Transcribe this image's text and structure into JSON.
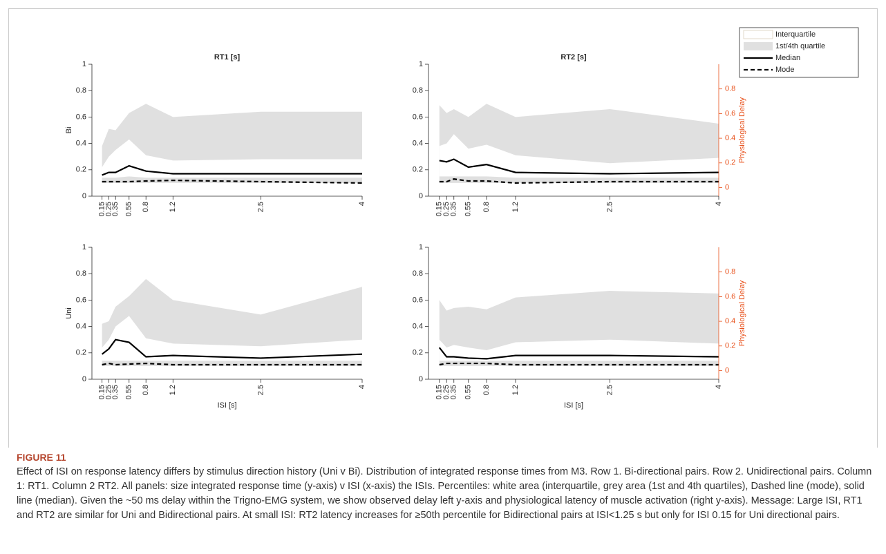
{
  "chart_data": [
    {
      "type": "line",
      "title": "RT1 [s]",
      "ylabel": "Bi",
      "x": [
        0.15,
        0.25,
        0.35,
        0.55,
        0.8,
        1.2,
        2.5,
        4
      ],
      "xlim": [
        0,
        4
      ],
      "xticks": [
        0.15,
        0.25,
        0.35,
        0.55,
        0.8,
        1.2,
        2.5,
        4
      ],
      "ylim": [
        0,
        1
      ],
      "yticks": [
        0,
        0.2,
        0.4,
        0.6,
        0.8,
        1
      ],
      "series": [
        {
          "name": "1st/4th quartile",
          "color": "#e0e0e0",
          "low": [
            0.1,
            0.1,
            0.1,
            0.1,
            0.1,
            0.1,
            0.1,
            0.1
          ],
          "high": [
            0.38,
            0.51,
            0.5,
            0.63,
            0.7,
            0.6,
            0.64,
            0.64
          ]
        },
        {
          "name": "Interquartile",
          "color": "#ffffff",
          "low": [
            0.14,
            0.14,
            0.14,
            0.15,
            0.14,
            0.14,
            0.14,
            0.14
          ],
          "high": [
            0.22,
            0.3,
            0.35,
            0.43,
            0.31,
            0.27,
            0.28,
            0.28
          ]
        },
        {
          "name": "Median",
          "color": "#000000",
          "values": [
            0.16,
            0.18,
            0.18,
            0.23,
            0.19,
            0.17,
            0.17,
            0.17
          ]
        },
        {
          "name": "Mode",
          "color": "#000000",
          "dashed": true,
          "values": [
            0.11,
            0.11,
            0.11,
            0.11,
            0.115,
            0.12,
            0.11,
            0.1
          ]
        }
      ]
    },
    {
      "type": "line",
      "title": "RT2 [s]",
      "y2label": "Physiological Delay",
      "y2color": "#e8501a",
      "x": [
        0.15,
        0.25,
        0.35,
        0.55,
        0.8,
        1.2,
        2.5,
        4
      ],
      "xlim": [
        0,
        4
      ],
      "xticks": [
        0.15,
        0.25,
        0.35,
        0.55,
        0.8,
        1.2,
        2.5,
        4
      ],
      "ylim": [
        0,
        1
      ],
      "yticks": [
        0,
        0.2,
        0.4,
        0.6,
        0.8,
        1
      ],
      "y2lim": [
        -0.07,
        1
      ],
      "y2ticks": [
        0,
        0.2,
        0.4,
        0.6,
        0.8
      ],
      "series": [
        {
          "name": "1st/4th quartile",
          "color": "#e0e0e0",
          "low": [
            0.1,
            0.1,
            0.1,
            0.1,
            0.1,
            0.1,
            0.1,
            0.1
          ],
          "high": [
            0.69,
            0.63,
            0.66,
            0.6,
            0.7,
            0.6,
            0.66,
            0.55
          ]
        },
        {
          "name": "Interquartile",
          "color": "#ffffff",
          "low": [
            0.15,
            0.15,
            0.15,
            0.15,
            0.15,
            0.14,
            0.14,
            0.14
          ],
          "high": [
            0.38,
            0.4,
            0.47,
            0.36,
            0.39,
            0.31,
            0.25,
            0.29
          ]
        },
        {
          "name": "Median",
          "color": "#000000",
          "values": [
            0.27,
            0.26,
            0.28,
            0.22,
            0.24,
            0.18,
            0.17,
            0.18
          ]
        },
        {
          "name": "Mode",
          "color": "#000000",
          "dashed": true,
          "values": [
            0.11,
            0.11,
            0.13,
            0.115,
            0.115,
            0.1,
            0.11,
            0.11
          ]
        }
      ]
    },
    {
      "type": "line",
      "ylabel": "Uni",
      "xlabel": "ISI [s]",
      "x": [
        0.15,
        0.25,
        0.35,
        0.55,
        0.8,
        1.2,
        2.5,
        4
      ],
      "xlim": [
        0,
        4
      ],
      "xticks": [
        0.15,
        0.25,
        0.35,
        0.55,
        0.8,
        1.2,
        2.5,
        4
      ],
      "ylim": [
        0,
        1
      ],
      "yticks": [
        0,
        0.2,
        0.4,
        0.6,
        0.8,
        1
      ],
      "series": [
        {
          "name": "1st/4th quartile",
          "color": "#e0e0e0",
          "low": [
            0.1,
            0.1,
            0.1,
            0.1,
            0.1,
            0.1,
            0.1,
            0.1
          ],
          "high": [
            0.42,
            0.44,
            0.55,
            0.63,
            0.76,
            0.6,
            0.49,
            0.7
          ]
        },
        {
          "name": "Interquartile",
          "color": "#ffffff",
          "low": [
            0.14,
            0.14,
            0.14,
            0.14,
            0.14,
            0.14,
            0.14,
            0.14
          ],
          "high": [
            0.24,
            0.3,
            0.4,
            0.48,
            0.31,
            0.27,
            0.25,
            0.3
          ]
        },
        {
          "name": "Median",
          "color": "#000000",
          "values": [
            0.19,
            0.23,
            0.3,
            0.28,
            0.17,
            0.18,
            0.16,
            0.19
          ]
        },
        {
          "name": "Mode",
          "color": "#000000",
          "dashed": true,
          "values": [
            0.11,
            0.12,
            0.11,
            0.115,
            0.12,
            0.11,
            0.11,
            0.11
          ]
        }
      ]
    },
    {
      "type": "line",
      "xlabel": "ISI [s]",
      "y2label": "Physiological Delay",
      "y2color": "#e8501a",
      "x": [
        0.15,
        0.25,
        0.35,
        0.55,
        0.8,
        1.2,
        2.5,
        4
      ],
      "xlim": [
        0,
        4
      ],
      "xticks": [
        0.15,
        0.25,
        0.35,
        0.55,
        0.8,
        1.2,
        2.5,
        4
      ],
      "ylim": [
        0,
        1
      ],
      "yticks": [
        0,
        0.2,
        0.4,
        0.6,
        0.8,
        1
      ],
      "y2lim": [
        -0.07,
        1
      ],
      "y2ticks": [
        0,
        0.2,
        0.4,
        0.6,
        0.8
      ],
      "series": [
        {
          "name": "1st/4th quartile",
          "color": "#e0e0e0",
          "low": [
            0.1,
            0.1,
            0.1,
            0.1,
            0.1,
            0.1,
            0.1,
            0.1
          ],
          "high": [
            0.6,
            0.52,
            0.54,
            0.55,
            0.53,
            0.62,
            0.67,
            0.65
          ]
        },
        {
          "name": "Interquartile",
          "color": "#ffffff",
          "low": [
            0.14,
            0.14,
            0.14,
            0.14,
            0.14,
            0.14,
            0.14,
            0.14
          ],
          "high": [
            0.3,
            0.24,
            0.26,
            0.24,
            0.22,
            0.28,
            0.3,
            0.27
          ]
        },
        {
          "name": "Median",
          "color": "#000000",
          "values": [
            0.24,
            0.17,
            0.17,
            0.16,
            0.155,
            0.18,
            0.18,
            0.17
          ]
        },
        {
          "name": "Mode",
          "color": "#000000",
          "dashed": true,
          "values": [
            0.11,
            0.12,
            0.12,
            0.12,
            0.12,
            0.11,
            0.11,
            0.11
          ]
        }
      ]
    }
  ],
  "caption": {
    "label": "FIGURE 11",
    "text": "Effect of ISI on response latency differs by stimulus direction history (Uni v Bi). Distribution of integrated response times from M3. Row 1. Bi-directional pairs. Row 2. Unidirectional pairs. Column 1: RT1. Column 2 RT2. All panels: size integrated response time (y-axis) v ISI (x-axis) the ISIs. Percentiles: white area (interquartile, grey area (1st and 4th quartiles), Dashed line (mode), solid line (median). Given the ~50 ms delay within the Trigno-EMG system, we show observed delay left y-axis and physiological latency of muscle activation (right y-axis). Message: Large ISI, RT1 and RT2 are similar for Uni and Bidirectional pairs. At small ISI: RT2 latency increases for ≥50th percentile for Bidirectional pairs at ISI<1.25 s but only for ISI 0.15 for Uni directional pairs."
  }
}
